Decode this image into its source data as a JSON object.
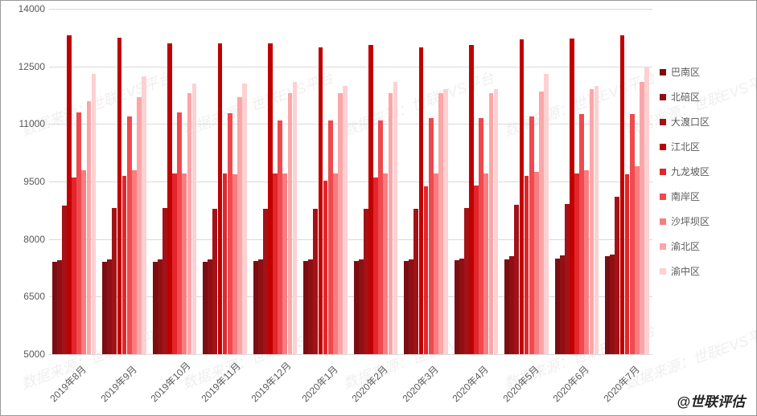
{
  "chart": {
    "type": "bar",
    "ymin": 5000,
    "ymax": 14000,
    "ytick_step": 1500,
    "grid_color": "#d9d9d9",
    "background_color": "#ffffff",
    "label_fontsize": 12,
    "label_color": "#595959",
    "xlabel_rotation": -45,
    "categories": [
      "2019年8月",
      "2019年9月",
      "2019年10月",
      "2019年11月",
      "2019年12月",
      "2020年1月",
      "2020年2月",
      "2020年3月",
      "2020年4月",
      "2020年5月",
      "2020年6月",
      "2020年7月"
    ],
    "series": [
      {
        "name": "巴南区",
        "color": "#7a0e12",
        "values": [
          7400,
          7400,
          7400,
          7400,
          7420,
          7420,
          7420,
          7430,
          7440,
          7480,
          7500,
          7550
        ]
      },
      {
        "name": "北碚区",
        "color": "#8f1014",
        "values": [
          7450,
          7460,
          7460,
          7460,
          7470,
          7470,
          7470,
          7480,
          7500,
          7550,
          7580,
          7600
        ]
      },
      {
        "name": "大渡口区",
        "color": "#a31216",
        "values": [
          8870,
          8820,
          8800,
          8780,
          8780,
          8780,
          8780,
          8780,
          8800,
          8900,
          8920,
          9100
        ]
      },
      {
        "name": "江北区",
        "color": "#c00000",
        "values": [
          13300,
          13250,
          13100,
          13100,
          13100,
          13000,
          13050,
          13000,
          13050,
          13200,
          13220,
          13300
        ]
      },
      {
        "name": "九龙坡区",
        "color": "#e3262b",
        "values": [
          9600,
          9650,
          9700,
          9720,
          9720,
          9520,
          9600,
          9380,
          9400,
          9650,
          9700,
          9680
        ]
      },
      {
        "name": "南岸区",
        "color": "#f04a4e",
        "values": [
          11300,
          11200,
          11300,
          11280,
          11100,
          11100,
          11100,
          11150,
          11150,
          11200,
          11250,
          11250
        ]
      },
      {
        "name": "沙坪坝区",
        "color": "#f77d80",
        "values": [
          9800,
          9800,
          9700,
          9680,
          9700,
          9700,
          9700,
          9700,
          9700,
          9750,
          9800,
          9900
        ]
      },
      {
        "name": "渝北区",
        "color": "#fba6a8",
        "values": [
          11600,
          11700,
          11800,
          11700,
          11800,
          11800,
          11800,
          11800,
          11800,
          11850,
          11900,
          12100
        ]
      },
      {
        "name": "渝中区",
        "color": "#fdd1d2",
        "values": [
          12300,
          12250,
          12050,
          12050,
          12100,
          12000,
          12100,
          11900,
          11900,
          12300,
          12000,
          12500
        ]
      }
    ]
  },
  "watermark_text": "数据来源：世联EVS平台",
  "attribution": "@世联评估"
}
